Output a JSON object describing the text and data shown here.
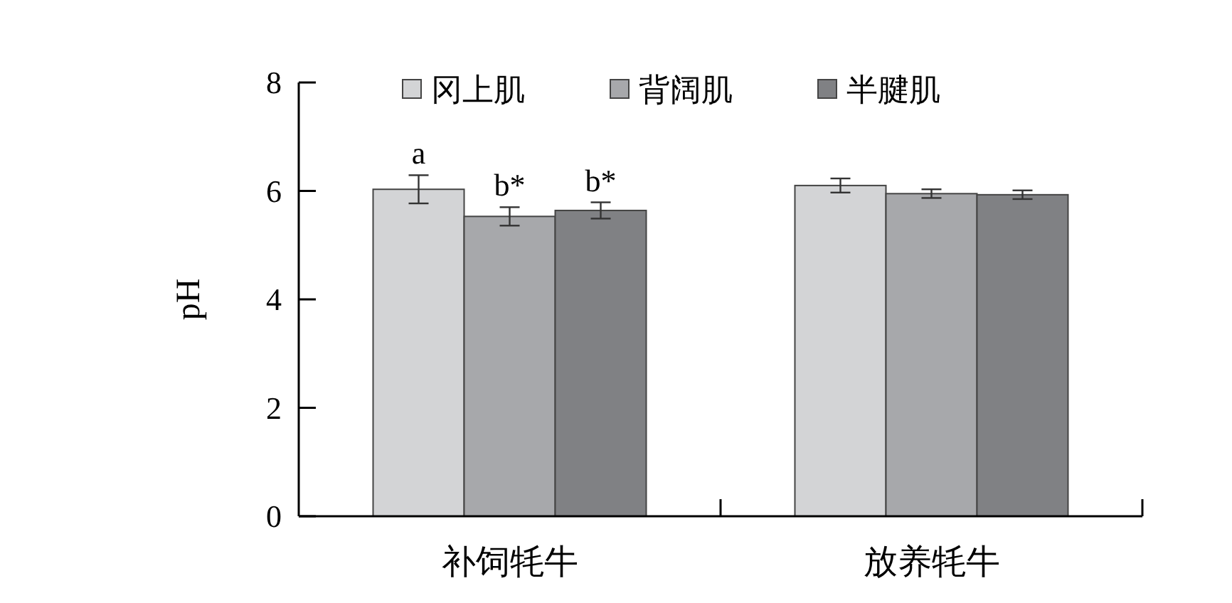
{
  "chart_data": {
    "type": "bar",
    "ylabel": "pH",
    "categories": [
      "补饲牦牛",
      "放养牦牛"
    ],
    "series": [
      {
        "name": "冈上肌",
        "color": "#d3d4d6",
        "values": [
          6.03,
          6.1
        ],
        "errors": [
          0.26,
          0.13
        ]
      },
      {
        "name": "背阔肌",
        "color": "#a7a8ab",
        "values": [
          5.53,
          5.95
        ],
        "errors": [
          0.17,
          0.08
        ]
      },
      {
        "name": "半腱肌",
        "color": "#808184",
        "values": [
          5.64,
          5.93
        ],
        "errors": [
          0.15,
          0.08
        ]
      }
    ],
    "ylim": [
      0,
      8
    ],
    "yticks": [
      0,
      2,
      4,
      6,
      8
    ],
    "grid": false,
    "legend": "top",
    "annotations": [
      "a",
      "b*",
      "b*"
    ]
  }
}
